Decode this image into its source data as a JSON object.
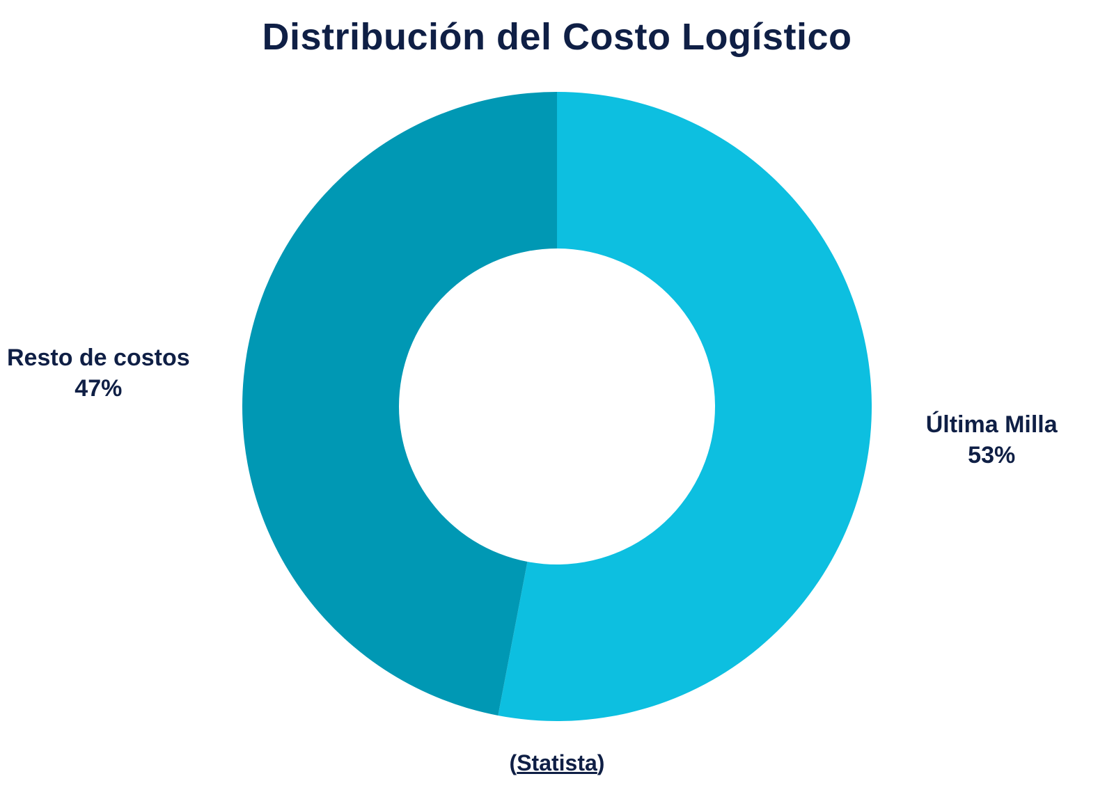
{
  "chart_data": {
    "type": "pie",
    "title": "Distribución del Costo Logístico",
    "donut": true,
    "slices": [
      {
        "name": "Última Milla",
        "value": 53,
        "label": "53%",
        "color": "#0dbfe0"
      },
      {
        "name": "Resto de costos",
        "value": 47,
        "label": "47%",
        "color": "#0098b4"
      }
    ]
  },
  "source": {
    "open": "(",
    "text": "Statista",
    "close": ")"
  }
}
